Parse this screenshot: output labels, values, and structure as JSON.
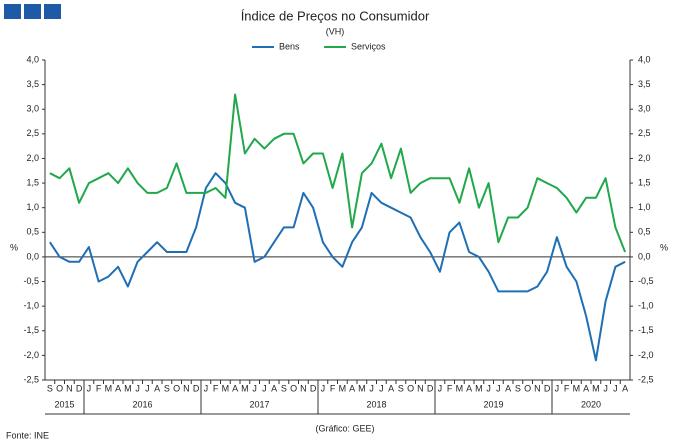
{
  "chart_data": {
    "type": "line",
    "title": "Índice de Preços no Consumidor",
    "subtitle": "(VH)",
    "y_label": "%",
    "y2_label": "%",
    "source": "Fonte: INE",
    "credit": "(Gráfico: GEE)",
    "legend": "top",
    "categories": [
      "S",
      "O",
      "N",
      "D",
      "J",
      "F",
      "M",
      "A",
      "M",
      "J",
      "J",
      "A",
      "S",
      "O",
      "N",
      "D",
      "J",
      "F",
      "M",
      "A",
      "M",
      "J",
      "J",
      "A",
      "S",
      "O",
      "N",
      "D",
      "J",
      "F",
      "M",
      "A",
      "M",
      "J",
      "J",
      "A",
      "S",
      "O",
      "N",
      "D",
      "J",
      "F",
      "M",
      "A",
      "M",
      "J",
      "J",
      "A",
      "S",
      "O",
      "N",
      "D",
      "J",
      "F",
      "M",
      "A",
      "M",
      "J",
      "J",
      "A"
    ],
    "years": [
      "2015",
      "2016",
      "2017",
      "2018",
      "2019",
      "2020"
    ],
    "series": [
      {
        "name": "Bens",
        "color": "#1f6fb4",
        "values": [
          0.3,
          0.0,
          -0.1,
          -0.1,
          0.2,
          -0.5,
          -0.4,
          -0.2,
          -0.6,
          -0.1,
          0.1,
          0.3,
          0.1,
          0.1,
          0.1,
          0.6,
          1.4,
          1.7,
          1.5,
          1.1,
          1.0,
          -0.1,
          0.0,
          0.3,
          0.6,
          0.6,
          1.3,
          1.0,
          0.3,
          0.0,
          -0.2,
          0.3,
          0.6,
          1.3,
          1.1,
          1.0,
          0.9,
          0.8,
          0.4,
          0.1,
          -0.3,
          0.5,
          0.7,
          0.1,
          0.0,
          -0.3,
          -0.7,
          -0.7,
          -0.7,
          -0.7,
          -0.6,
          -0.3,
          0.4,
          -0.2,
          -0.5,
          -1.2,
          -2.1,
          -0.9,
          -0.2,
          -0.1
        ]
      },
      {
        "name": "Serviços",
        "color": "#20a84a",
        "values": [
          1.7,
          1.6,
          1.8,
          1.1,
          1.5,
          1.6,
          1.7,
          1.5,
          1.8,
          1.5,
          1.3,
          1.3,
          1.4,
          1.9,
          1.3,
          1.3,
          1.3,
          1.4,
          1.2,
          3.3,
          2.1,
          2.4,
          2.2,
          2.4,
          2.5,
          2.5,
          1.9,
          2.1,
          2.1,
          1.4,
          2.1,
          0.6,
          1.7,
          1.9,
          2.3,
          1.6,
          2.2,
          1.3,
          1.5,
          1.6,
          1.6,
          1.6,
          1.1,
          1.8,
          1.0,
          1.5,
          0.3,
          0.8,
          0.8,
          1.0,
          1.6,
          1.5,
          1.4,
          1.2,
          0.9,
          1.2,
          1.2,
          1.6,
          0.6,
          0.1
        ]
      }
    ],
    "ylim": [
      -2.5,
      4.0
    ],
    "yticks": [
      {
        "value": -2.5,
        "label": "-2,5"
      },
      {
        "value": -2,
        "label": "-2,0"
      },
      {
        "value": -1.5,
        "label": "-1,5"
      },
      {
        "value": -1,
        "label": "-1,0"
      },
      {
        "value": -0.5,
        "label": "-0,5"
      },
      {
        "value": 0,
        "label": "0,0"
      },
      {
        "value": 0.5,
        "label": "0,5"
      },
      {
        "value": 1,
        "label": "1,0"
      },
      {
        "value": 1.5,
        "label": "1,5"
      },
      {
        "value": 2,
        "label": "2,0"
      },
      {
        "value": 2.5,
        "label": "2,5"
      },
      {
        "value": 3,
        "label": "3,0"
      },
      {
        "value": 3.5,
        "label": "3,5"
      },
      {
        "value": 4,
        "label": "4,0"
      }
    ],
    "y2lim": [
      -2.5,
      4.0
    ],
    "y2ticks": [
      {
        "value": -2.5,
        "label": "-2,5"
      },
      {
        "value": -2,
        "label": "-2,0"
      },
      {
        "value": -1.5,
        "label": "-1,5"
      },
      {
        "value": -1,
        "label": "-1,0"
      },
      {
        "value": -0.5,
        "label": "-0,5"
      },
      {
        "value": 0,
        "label": "0,0"
      },
      {
        "value": 0.5,
        "label": "0,5"
      },
      {
        "value": 1,
        "label": "1,0"
      },
      {
        "value": 1.5,
        "label": "1,5"
      },
      {
        "value": 2,
        "label": "2,0"
      },
      {
        "value": 2.5,
        "label": "2,5"
      },
      {
        "value": 3,
        "label": "3,0"
      },
      {
        "value": 3.5,
        "label": "3,5"
      },
      {
        "value": 4,
        "label": "4,0"
      }
    ]
  }
}
